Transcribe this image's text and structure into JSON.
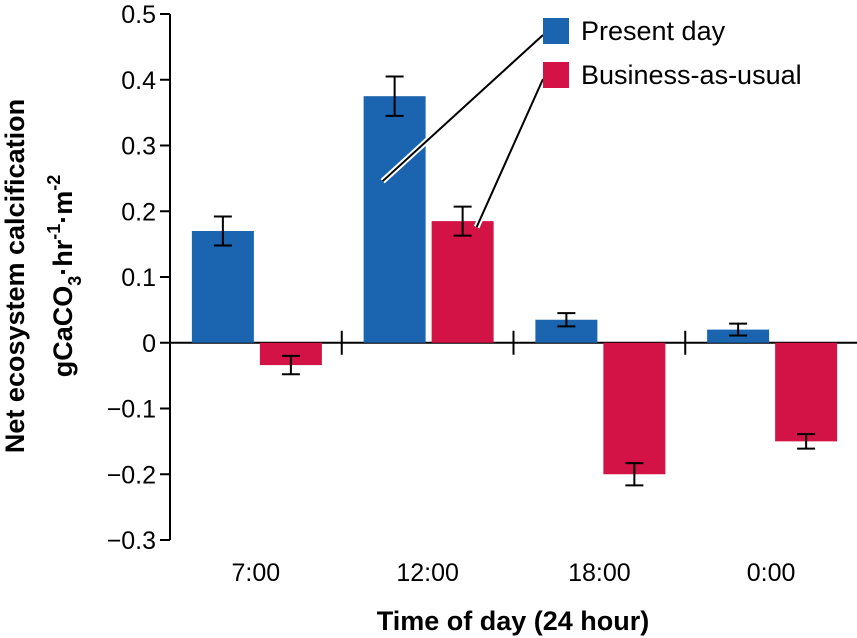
{
  "chart_data": {
    "type": "bar",
    "categories": [
      "7:00",
      "12:00",
      "18:00",
      "0:00"
    ],
    "series": [
      {
        "name": "Present day",
        "color": "#1a64b0",
        "values": [
          0.17,
          0.375,
          0.035,
          0.02
        ],
        "errors": [
          0.022,
          0.03,
          0.01,
          0.009
        ]
      },
      {
        "name": "Business-as-usual",
        "color": "#d31245",
        "values": [
          -0.034,
          0.185,
          -0.2,
          -0.15
        ],
        "errors": [
          0.014,
          0.022,
          0.017,
          0.011
        ]
      }
    ],
    "ylim": [
      -0.3,
      0.5
    ],
    "yticks": [
      {
        "value": 0.5,
        "label": "0.5"
      },
      {
        "value": 0.4,
        "label": "0.4"
      },
      {
        "value": 0.3,
        "label": "0.3"
      },
      {
        "value": 0.2,
        "label": "0.2"
      },
      {
        "value": 0.1,
        "label": "0.1"
      },
      {
        "value": 0,
        "label": "0"
      },
      {
        "value": -0.1,
        "label": "−0.1"
      },
      {
        "value": -0.2,
        "label": "−0.2"
      },
      {
        "value": -0.3,
        "label": "−0.3"
      }
    ],
    "xlabel": "Time of day (24 hour)",
    "ylabel_line1": "Net ecosystem calcification",
    "ylabel_line2": {
      "base": "gCaCO",
      "sub": "3",
      "mid1": "·hr",
      "sup1": "-1",
      "mid2": "·m",
      "sup2": "-2"
    },
    "grid": false,
    "legend_position": "top-right"
  }
}
